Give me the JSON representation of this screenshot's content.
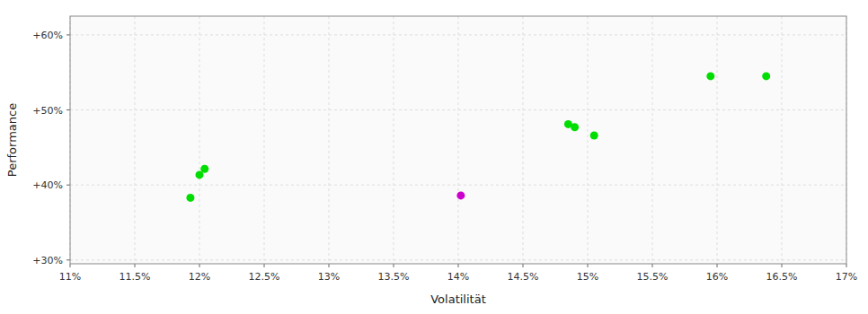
{
  "chart_data": {
    "type": "scatter",
    "xlabel": "Volatilität",
    "ylabel": "Performance",
    "xlim": [
      0.11,
      0.17
    ],
    "ylim": [
      0.295,
      0.625
    ],
    "xticks": [
      {
        "value": 0.11,
        "label": "11%"
      },
      {
        "value": 0.115,
        "label": "11.5%"
      },
      {
        "value": 0.12,
        "label": "12%"
      },
      {
        "value": 0.125,
        "label": "12.5%"
      },
      {
        "value": 0.13,
        "label": "13%"
      },
      {
        "value": 0.135,
        "label": "13.5%"
      },
      {
        "value": 0.14,
        "label": "14%"
      },
      {
        "value": 0.145,
        "label": "14.5%"
      },
      {
        "value": 0.15,
        "label": "15%"
      },
      {
        "value": 0.155,
        "label": "15.5%"
      },
      {
        "value": 0.16,
        "label": "16%"
      },
      {
        "value": 0.165,
        "label": "16.5%"
      },
      {
        "value": 0.17,
        "label": "17%"
      }
    ],
    "yticks": [
      {
        "value": 0.3,
        "label": "+30%"
      },
      {
        "value": 0.4,
        "label": "+40%"
      },
      {
        "value": 0.5,
        "label": "+50%"
      },
      {
        "value": 0.6,
        "label": "+60%"
      }
    ],
    "grid": true,
    "marker": "circle",
    "series": [
      {
        "color": "#00dd00",
        "x": [
          0.12,
          0.1204,
          0.1193,
          0.1485,
          0.149,
          0.1505,
          0.1595,
          0.1638
        ],
        "values": [
          0.4135,
          0.4215,
          0.383,
          0.481,
          0.477,
          0.466,
          0.545,
          0.545
        ]
      },
      {
        "color": "#cc00cc",
        "x": [
          0.1402
        ],
        "values": [
          0.386
        ]
      }
    ]
  }
}
